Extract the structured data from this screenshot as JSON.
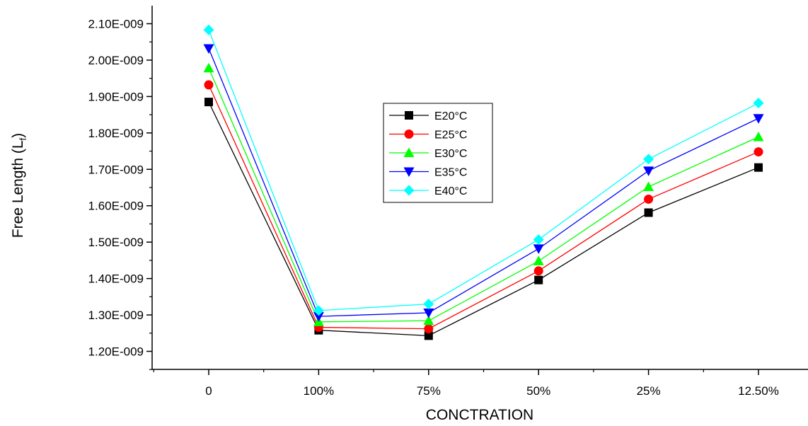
{
  "chart_data": {
    "type": "line",
    "categories": [
      "0",
      "100%",
      "75%",
      "50%",
      "25%",
      "12.50%"
    ],
    "xlabel": "CONCTRATION",
    "ylabel": "Free Length (L",
    "ylabel_sub": "f",
    "ylabel_close": ")",
    "ylim": [
      1.15e-09,
      2.12e-09
    ],
    "yticks": [
      1.2e-09,
      1.3e-09,
      1.4e-09,
      1.5e-09,
      1.6e-09,
      1.7e-09,
      1.8e-09,
      1.9e-09,
      2e-09,
      2.1e-09
    ],
    "ytick_labels": [
      "1.20E-009",
      "1.30E-009",
      "1.40E-009",
      "1.50E-009",
      "1.60E-009",
      "1.70E-009",
      "1.80E-009",
      "1.90E-009",
      "2.00E-009",
      "2.10E-009"
    ],
    "grid": false,
    "legend_position": "center",
    "series": [
      {
        "name": "E20°C",
        "color": "#000000",
        "marker": "square",
        "values": [
          1.885e-09,
          1.258e-09,
          1.243e-09,
          1.396e-09,
          1.581e-09,
          1.705e-09
        ]
      },
      {
        "name": "E25°C",
        "color": "#ff0000",
        "marker": "circle",
        "values": [
          1.932e-09,
          1.266e-09,
          1.262e-09,
          1.421e-09,
          1.618e-09,
          1.748e-09
        ]
      },
      {
        "name": "E30°C",
        "color": "#00ff00",
        "marker": "triangle-up",
        "values": [
          1.978e-09,
          1.281e-09,
          1.284e-09,
          1.448e-09,
          1.652e-09,
          1.789e-09
        ]
      },
      {
        "name": "E35°C",
        "color": "#0000ff",
        "marker": "triangle-down",
        "values": [
          2.032e-09,
          1.296e-09,
          1.306e-09,
          1.482e-09,
          1.696e-09,
          1.84e-09
        ]
      },
      {
        "name": "E40°C",
        "color": "#00ffff",
        "marker": "diamond",
        "values": [
          2.083e-09,
          1.312e-09,
          1.33e-09,
          1.507e-09,
          1.728e-09,
          1.882e-09
        ]
      }
    ]
  }
}
